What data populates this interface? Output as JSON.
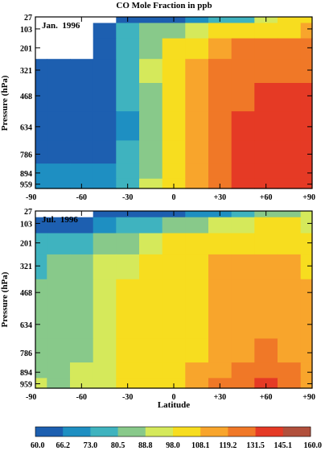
{
  "chart_data": [
    {
      "type": "heatmap",
      "title": "CO Mole Fraction in ppb",
      "annotation": "Jan.  1996",
      "xlabel": "",
      "ylabel": "Pressure (hPa)",
      "x_ticks": [
        "-90",
        "-60",
        "-30",
        "0",
        "+30",
        "+60",
        "+90"
      ],
      "x_tick_values": [
        -90,
        -60,
        -30,
        0,
        30,
        60,
        90
      ],
      "y_ticks": [
        "27",
        "103",
        "201",
        "321",
        "468",
        "634",
        "786",
        "894",
        "959"
      ],
      "xlim": [
        -90,
        90
      ],
      "latitudes": [
        -90,
        -75,
        -60,
        -45,
        -30,
        -15,
        0,
        15,
        30,
        45,
        60,
        75,
        90
      ],
      "pressure_levels": [
        27,
        103,
        201,
        321,
        468,
        634,
        786,
        894,
        959
      ],
      "values": [
        [
          null,
          null,
          null,
          null,
          62,
          64,
          66,
          70,
          75,
          80,
          90,
          100,
          108
        ],
        [
          null,
          null,
          null,
          64,
          75,
          82,
          88,
          95,
          100,
          104,
          106,
          108,
          110
        ],
        [
          null,
          null,
          null,
          62,
          75,
          88,
          100,
          108,
          115,
          120,
          125,
          125,
          122
        ],
        [
          62,
          62,
          62,
          64,
          76,
          90,
          104,
          115,
          122,
          128,
          128,
          128,
          128
        ],
        [
          64,
          62,
          60,
          63,
          74,
          88,
          100,
          114,
          124,
          131,
          133,
          133,
          133
        ],
        [
          66,
          60,
          60,
          63,
          72,
          86,
          100,
          114,
          125,
          134,
          140,
          140,
          140
        ],
        [
          66,
          64,
          63,
          65,
          73,
          86,
          100,
          115,
          126,
          136,
          142,
          145,
          145
        ],
        [
          69,
          68,
          68,
          70,
          76,
          88,
          102,
          117,
          128,
          138,
          145,
          145,
          145
        ],
        [
          72,
          71,
          71,
          72,
          78,
          90,
          104,
          119,
          130,
          140,
          145,
          145,
          145
        ]
      ]
    },
    {
      "type": "heatmap",
      "annotation": "Jul.  1996",
      "xlabel": "Latitude",
      "ylabel": "Pressure (hPa)",
      "x_ticks": [
        "-90",
        "-60",
        "-30",
        "0",
        "+30",
        "+60",
        "+90"
      ],
      "x_tick_values": [
        -90,
        -60,
        -30,
        0,
        30,
        60,
        90
      ],
      "y_ticks": [
        "27",
        "103",
        "201",
        "321",
        "468",
        "634",
        "786",
        "894",
        "959"
      ],
      "xlim": [
        -90,
        90
      ],
      "latitudes": [
        -90,
        -75,
        -60,
        -45,
        -30,
        -15,
        0,
        15,
        30,
        45,
        60,
        75,
        90
      ],
      "pressure_levels": [
        27,
        103,
        201,
        321,
        468,
        634,
        786,
        894,
        959
      ],
      "values": [
        [
          null,
          null,
          null,
          62,
          63,
          64,
          66,
          68,
          70,
          75,
          82,
          88,
          90
        ],
        [
          63,
          64,
          66,
          70,
          74,
          78,
          82,
          86,
          90,
          96,
          100,
          100,
          96
        ],
        [
          75,
          77,
          80,
          84,
          88,
          94,
          100,
          104,
          106,
          108,
          106,
          104,
          100
        ],
        [
          80,
          82,
          85,
          90,
          96,
          103,
          106,
          108,
          110,
          112,
          112,
          110,
          108
        ],
        [
          82,
          84,
          87,
          92,
          98,
          102,
          103,
          106,
          110,
          112,
          114,
          114,
          112
        ],
        [
          84,
          85,
          87,
          93,
          100,
          100,
          100,
          105,
          110,
          113,
          115,
          114,
          113
        ],
        [
          85,
          86,
          88,
          94,
          100,
          102,
          103,
          108,
          114,
          118,
          120,
          118,
          115
        ],
        [
          86,
          87,
          89,
          95,
          101,
          104,
          106,
          111,
          119,
          125,
          128,
          122,
          116
        ],
        [
          90,
          88,
          90,
          96,
          101,
          104,
          106,
          112,
          120,
          128,
          132,
          124,
          118
        ]
      ]
    }
  ],
  "colorbar": {
    "labels": [
      "60.0",
      "66.2",
      "73.0",
      "80.5",
      "88.8",
      "98.0",
      "108.1",
      "119.2",
      "131.5",
      "145.1",
      "160.0"
    ],
    "values": [
      60.0,
      66.2,
      73.0,
      80.5,
      88.8,
      98.0,
      108.1,
      119.2,
      131.5,
      145.1,
      160.0
    ],
    "colors": [
      "#1d5fb0",
      "#1e8fc2",
      "#3fb3bf",
      "#88c98a",
      "#d5e95b",
      "#f7dd1f",
      "#f8a52c",
      "#f07827",
      "#e53a25",
      "#b1503c"
    ]
  }
}
